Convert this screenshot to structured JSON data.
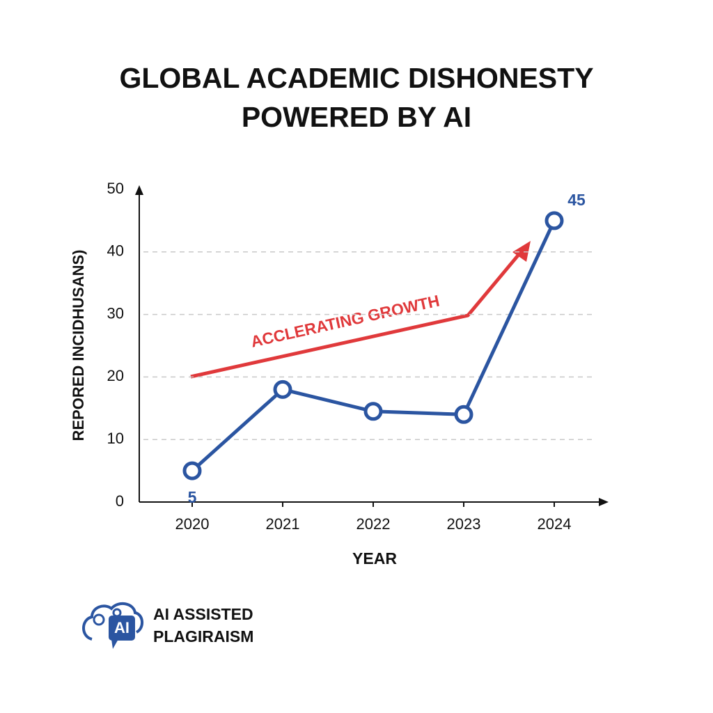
{
  "chart_data": {
    "type": "line",
    "title": [
      "GLOBAL ACADEMIC DISHONESTY",
      "POWERED BY AI"
    ],
    "x_label": "YEAR",
    "y_label": "REPORED INCIDHUSANS)",
    "categories": [
      "2020",
      "2021",
      "2022",
      "2023",
      "2024"
    ],
    "series": [
      {
        "name": "AI ASSISTED PLAGIRAISM",
        "color": "#2b55a1",
        "values": [
          5,
          18,
          14.5,
          14,
          45
        ],
        "value_labels": [
          "5",
          null,
          null,
          null,
          "45"
        ]
      }
    ],
    "ylim": [
      0,
      50
    ],
    "yticks": [
      0,
      10,
      20,
      30,
      40,
      50
    ],
    "grid": true,
    "annotation": {
      "text": "ACCLERATING GROWTH",
      "color": "#e0393b"
    },
    "badge": {
      "icon_text": "AI",
      "lines": [
        "AI ASSISTED",
        "PLAGIRAISM"
      ]
    }
  }
}
